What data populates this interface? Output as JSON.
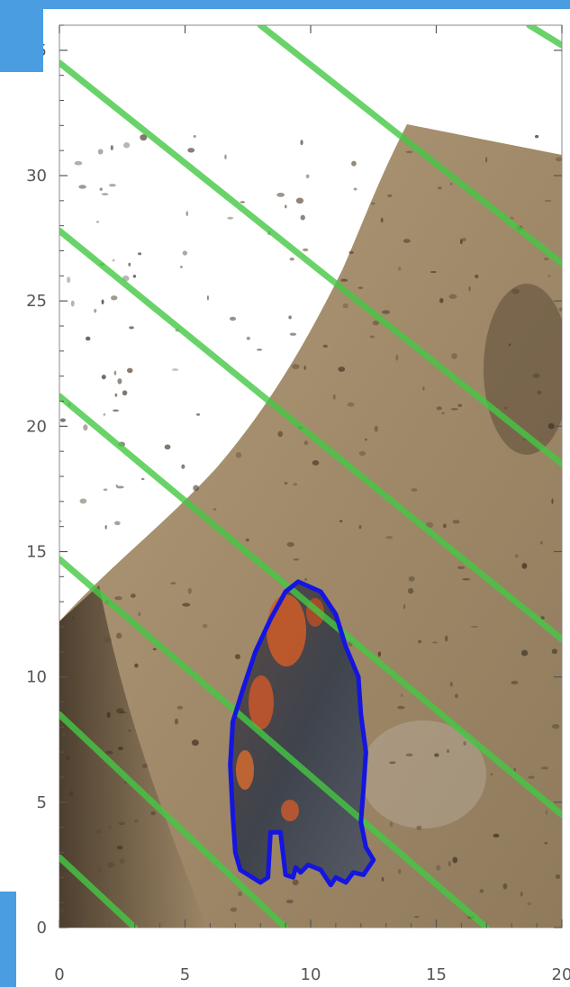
{
  "colors": {
    "accent": "#4a9de0",
    "contour": "#44c844",
    "outline": "#1515e0",
    "soil": "#a38e6e",
    "soil_dark": "#5e4b36",
    "artifact": "#4a4d55",
    "artifact_orange": "#d8642a",
    "axis": "#555555"
  },
  "chart_data": {
    "type": "image-overlay",
    "title": "",
    "xlabel": "",
    "ylabel": "",
    "xlim": [
      0,
      20
    ],
    "ylim": [
      0,
      36
    ],
    "x_ticks": [
      "0",
      "5",
      "10",
      "15",
      "20"
    ],
    "y_ticks": [
      "0",
      "5",
      "10",
      "15",
      "20",
      "25",
      "30",
      "35"
    ],
    "contour_lines": [
      [
        [
          8,
          36
        ],
        [
          20,
          26.5
        ]
      ],
      [
        [
          0,
          34.5
        ],
        [
          20,
          18.5
        ]
      ],
      [
        [
          0,
          27.8
        ],
        [
          20,
          11.5
        ]
      ],
      [
        [
          0,
          21.2
        ],
        [
          20,
          4.5
        ]
      ],
      [
        [
          0,
          14.7
        ],
        [
          17,
          0
        ]
      ],
      [
        [
          0,
          8.5
        ],
        [
          9,
          0
        ]
      ],
      [
        [
          0,
          2.8
        ],
        [
          3,
          0
        ]
      ],
      [
        [
          18.7,
          36
        ],
        [
          20,
          35.2
        ]
      ]
    ],
    "artifact_outline": [
      [
        9.5,
        13.8
      ],
      [
        10.4,
        13.4
      ],
      [
        11,
        12.5
      ],
      [
        11.4,
        11.2
      ],
      [
        11.9,
        10
      ],
      [
        12,
        8.5
      ],
      [
        12.2,
        7
      ],
      [
        12.1,
        5.5
      ],
      [
        12.0,
        4.2
      ],
      [
        12.2,
        3.2
      ],
      [
        12.5,
        2.7
      ],
      [
        12.1,
        2.1
      ],
      [
        11.7,
        2.2
      ],
      [
        11.4,
        1.8
      ],
      [
        11.0,
        2.0
      ],
      [
        10.8,
        1.7
      ],
      [
        10.4,
        2.3
      ],
      [
        9.9,
        2.5
      ],
      [
        9.6,
        2.2
      ],
      [
        9.4,
        2.4
      ],
      [
        9.3,
        2.0
      ],
      [
        9.0,
        2.1
      ],
      [
        8.8,
        3.8
      ],
      [
        8.4,
        3.8
      ],
      [
        8.3,
        2.0
      ],
      [
        8.0,
        1.8
      ],
      [
        7.2,
        2.3
      ],
      [
        7.0,
        3.0
      ],
      [
        6.9,
        4.5
      ],
      [
        6.8,
        6.5
      ],
      [
        6.9,
        8.2
      ],
      [
        7.3,
        9.5
      ],
      [
        7.8,
        11
      ],
      [
        8.4,
        12.3
      ],
      [
        9.0,
        13.4
      ]
    ]
  }
}
